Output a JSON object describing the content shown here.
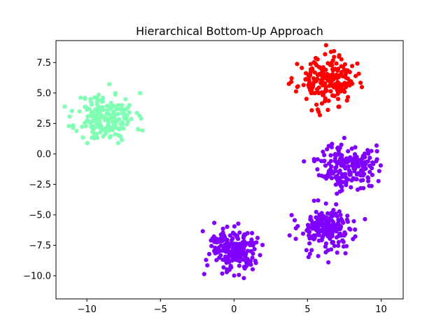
{
  "chart_data": {
    "type": "scatter",
    "title": "Hierarchical Bottom-Up Approach",
    "xlabel": "",
    "ylabel": "",
    "xlim": [
      -12.1,
      11.5
    ],
    "ylim": [
      -11.9,
      9.3
    ],
    "grid": false,
    "x_ticks": [
      -10,
      -5,
      0,
      5,
      10
    ],
    "x_tick_labels": [
      "−10",
      "−5",
      "0",
      "5",
      "10"
    ],
    "y_ticks": [
      -10,
      -7.5,
      -5,
      -2.5,
      0,
      2.5,
      5,
      7.5
    ],
    "y_tick_labels": [
      "−10.0",
      "−7.5",
      "−5.0",
      "−2.5",
      "0.0",
      "2.5",
      "5.0",
      "7.5"
    ],
    "clusters": [
      {
        "color": "#80ffb4",
        "center": [
          -8.7,
          3.0
        ],
        "spread": [
          1.0,
          1.0
        ],
        "count": 200,
        "seed": 11
      },
      {
        "color": "#ff0000",
        "center": [
          6.3,
          6.0
        ],
        "spread": [
          0.95,
          0.95
        ],
        "count": 200,
        "seed": 23
      },
      {
        "color": "#8000ff",
        "center": [
          7.7,
          -1.0
        ],
        "spread": [
          0.95,
          0.95
        ],
        "count": 200,
        "seed": 37
      },
      {
        "color": "#8000ff",
        "center": [
          6.3,
          -6.2
        ],
        "spread": [
          0.95,
          0.95
        ],
        "count": 200,
        "seed": 53
      },
      {
        "color": "#8000ff",
        "center": [
          0.0,
          -7.9
        ],
        "spread": [
          0.95,
          0.95
        ],
        "count": 200,
        "seed": 71
      }
    ]
  }
}
